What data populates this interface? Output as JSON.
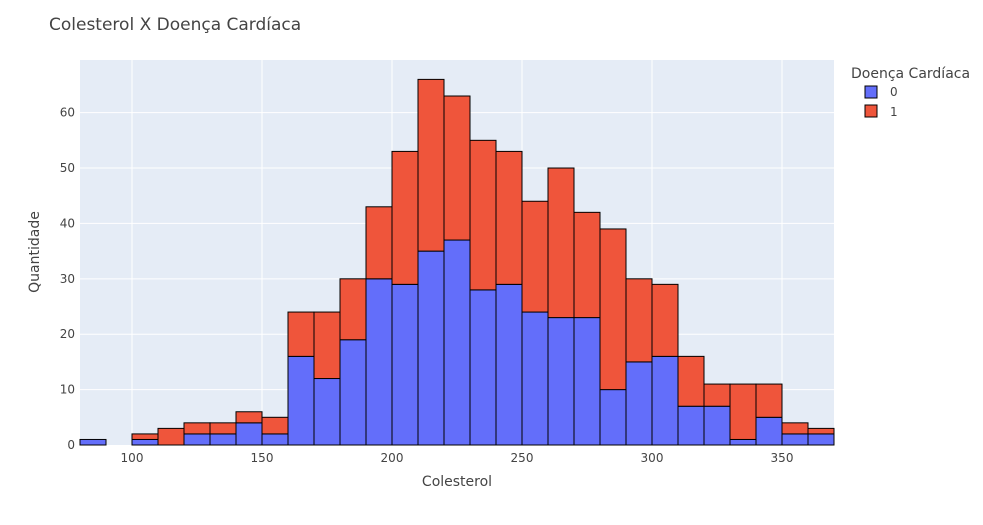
{
  "chart_data": {
    "type": "bar",
    "title": "Colesterol X Doença Cardíaca",
    "xlabel": "Colesterol",
    "ylabel": "Quantidade",
    "barmode": "stack",
    "bin_size": 10,
    "xlim": [
      80,
      370
    ],
    "ylim": [
      0,
      69.5
    ],
    "xticks": [
      100,
      150,
      200,
      250,
      300,
      350
    ],
    "yticks": [
      0,
      10,
      20,
      30,
      40,
      50,
      60
    ],
    "grid": true,
    "legend_position": "top-right",
    "legend_title": "Doença Cardíaca",
    "bins": [
      80,
      90,
      100,
      110,
      120,
      130,
      140,
      150,
      160,
      170,
      180,
      190,
      200,
      210,
      220,
      230,
      240,
      250,
      260,
      270,
      280,
      290,
      300,
      310,
      320,
      330,
      340,
      350,
      360
    ],
    "series": [
      {
        "name": "0",
        "color": "#636efa",
        "values": [
          1,
          0,
          1,
          0,
          2,
          2,
          4,
          2,
          16,
          12,
          19,
          30,
          29,
          35,
          37,
          28,
          29,
          24,
          23,
          23,
          10,
          15,
          16,
          7,
          7,
          1,
          5,
          2,
          2
        ]
      },
      {
        "name": "1",
        "color": "#ef553b",
        "values": [
          0,
          0,
          1,
          3,
          2,
          2,
          2,
          3,
          8,
          12,
          11,
          13,
          24,
          31,
          26,
          27,
          24,
          20,
          27,
          19,
          29,
          15,
          13,
          9,
          4,
          10,
          6,
          2,
          1
        ]
      }
    ]
  }
}
